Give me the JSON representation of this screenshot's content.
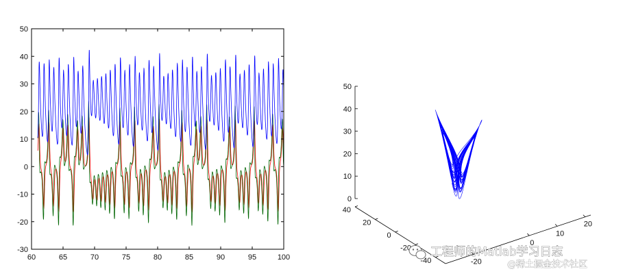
{
  "chart_data": [
    {
      "type": "line",
      "title": "",
      "xlabel": "",
      "ylabel": "",
      "xlim": [
        60,
        100
      ],
      "ylim": [
        -30,
        50
      ],
      "xticks": [
        60,
        65,
        70,
        75,
        80,
        85,
        90,
        95,
        100
      ],
      "yticks": [
        -30,
        -20,
        -10,
        0,
        10,
        20,
        30,
        40,
        50
      ],
      "legend": "none",
      "grid": false,
      "series": [
        {
          "color": "#0000ff",
          "x_range": [
            61,
            100
          ],
          "approx_min": 7,
          "approx_max": 44,
          "typical_center": 25
        },
        {
          "color": "#ff0000",
          "x_range": [
            61,
            100
          ],
          "approx_min": -23,
          "approx_max": 21
        },
        {
          "color": "#006400",
          "x_range": [
            61,
            100
          ],
          "approx_min": -20,
          "approx_max": 18
        }
      ]
    },
    {
      "type": "line3d",
      "title": "",
      "zlim": [
        0,
        50
      ],
      "zticks": [
        0,
        10,
        20,
        30,
        40,
        50
      ],
      "yticks": [
        40,
        20,
        0,
        -20,
        -40
      ],
      "xticks": [
        -20,
        0,
        10,
        20
      ],
      "legend": "none",
      "grid": false,
      "series": [
        {
          "color": "#0000ff"
        }
      ]
    }
  ],
  "watermark": {
    "main": "工程师的Matlab学习日志",
    "sub": "@稀土掘金技术社区"
  }
}
